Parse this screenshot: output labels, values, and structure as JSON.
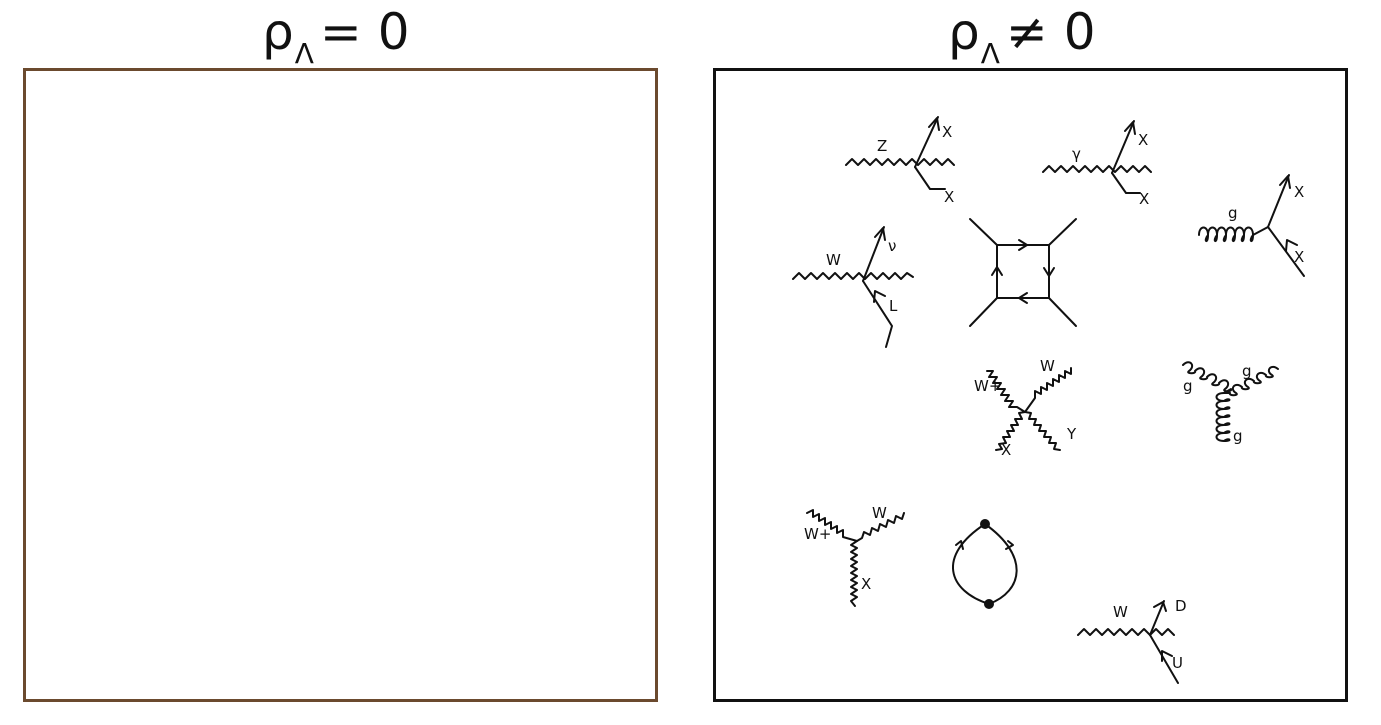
{
  "left_panel": {
    "title_symbol": "ρ",
    "title_sub": "Λ",
    "title_rel": "= 0"
  },
  "right_panel": {
    "title_symbol": "ρ",
    "title_sub": "Λ",
    "title_rel": "≠ 0",
    "labels": {
      "z_boson": "Z",
      "z_out1": "X",
      "z_out2": "X",
      "photon": "γ",
      "photon_out1": "X",
      "photon_out2": "X",
      "gluon": "g",
      "gluon_out1": "X",
      "gluon_out2": "X",
      "w_boson": "W",
      "w_out_nu": "ν",
      "w_out_l": "L",
      "quartic_wplus": "W+",
      "quartic_w": "W",
      "quartic_x": "X",
      "quartic_y": "Y",
      "triple_g1": "g",
      "triple_g2": "g",
      "triple_g3": "g",
      "triple_wplus": "W+",
      "triple_w": "W",
      "triple_x": "X",
      "w_decay": "W",
      "w_decay_d": "D",
      "w_decay_u": "U"
    }
  },
  "colors": {
    "left_frame": "#6b4a2e",
    "right_frame": "#111111"
  }
}
